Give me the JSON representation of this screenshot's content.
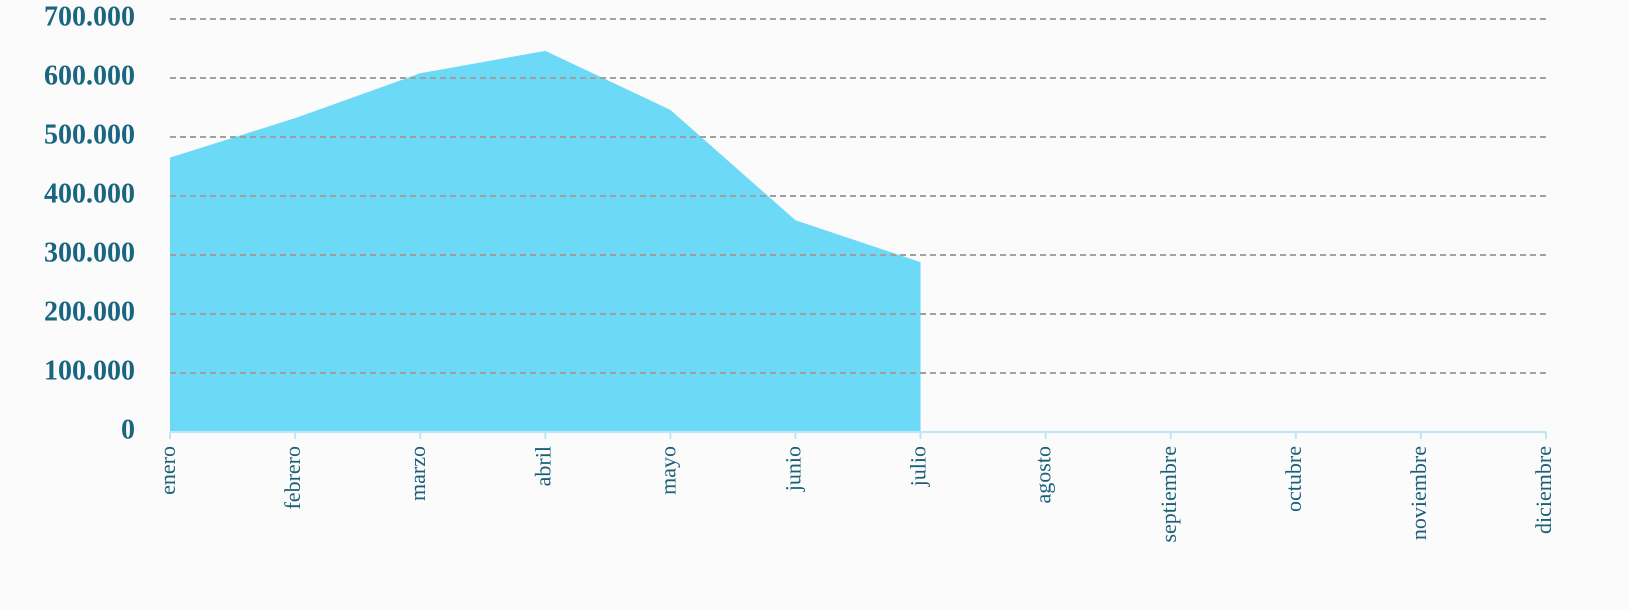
{
  "chart_data": {
    "type": "area",
    "categories": [
      "enero",
      "febrero",
      "marzo",
      "abril",
      "mayo",
      "junio",
      "julio",
      "agosto",
      "septiembre",
      "octubre",
      "noviembre",
      "diciembre"
    ],
    "values": [
      465000,
      532000,
      608000,
      646000,
      546000,
      359000,
      288000,
      null,
      null,
      null,
      null,
      null
    ],
    "color": "#6cdaf7",
    "ylim": [
      0,
      700000
    ],
    "yticks": [
      0,
      {
        "value": 100000,
        "label": "100.000"
      },
      {
        "value": 200000,
        "label": "200.000"
      },
      {
        "value": 300000,
        "label": "300.000"
      },
      {
        "value": 400000,
        "label": "400.000"
      },
      {
        "value": 500000,
        "label": "500.000"
      },
      {
        "value": 600000,
        "label": "600.000"
      },
      {
        "value": 700000,
        "label": "700.000"
      }
    ],
    "grid": true
  }
}
